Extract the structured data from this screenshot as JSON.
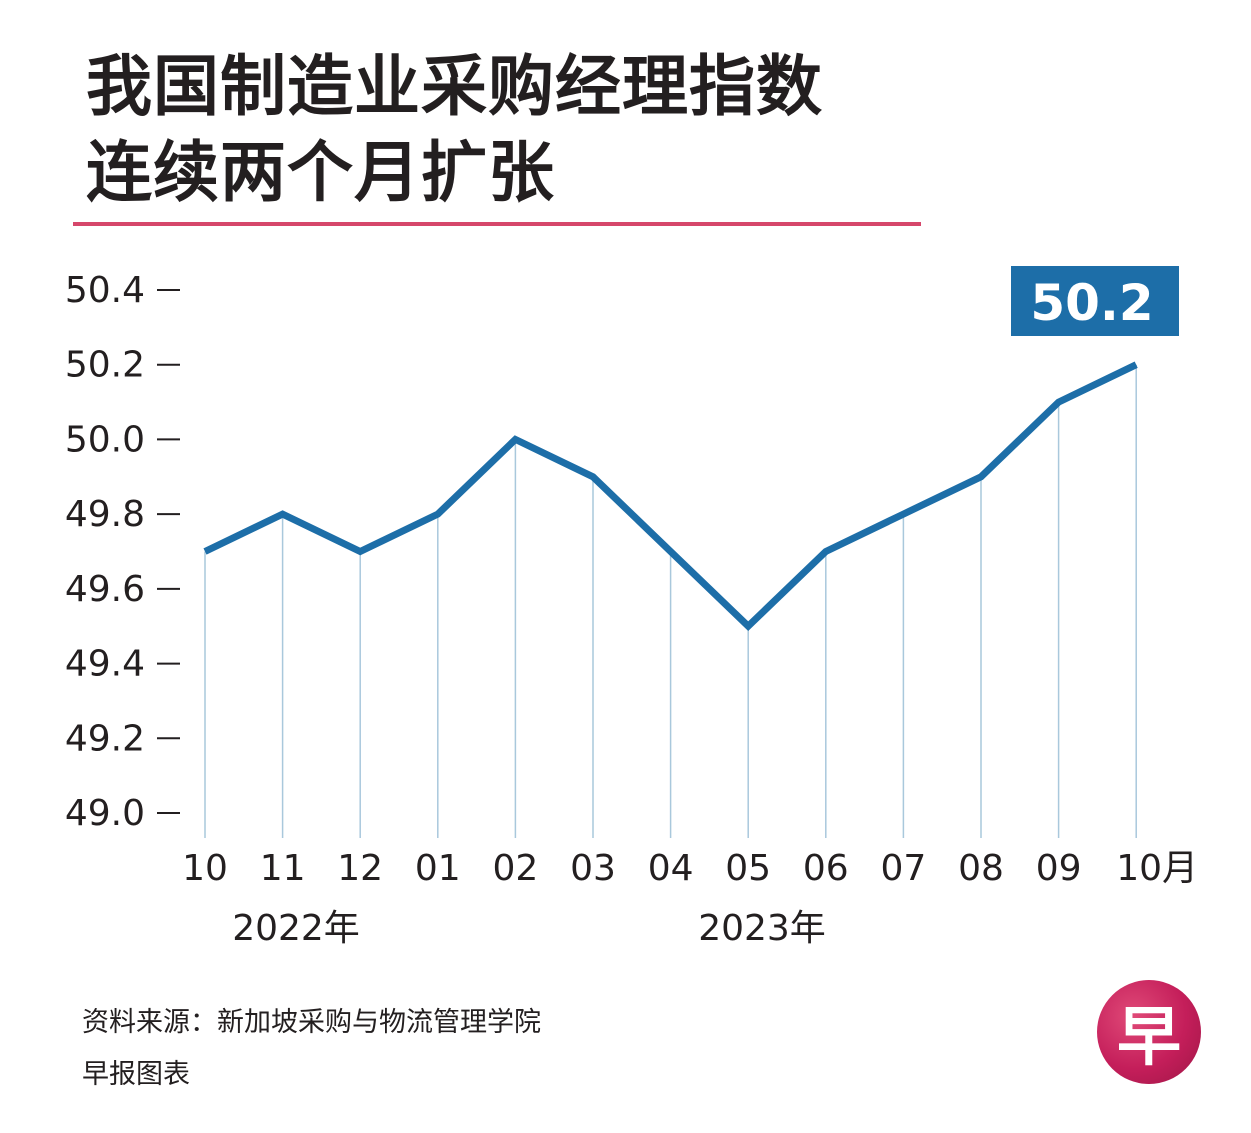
{
  "title": {
    "line1": "我国制造业采购经理指数",
    "line2": "连续两个月扩张"
  },
  "callout": {
    "value": "50.2"
  },
  "chart_data": {
    "type": "line",
    "title": "我国制造业采购经理指数连续两个月扩张",
    "categories": [
      "10",
      "11",
      "12",
      "01",
      "02",
      "03",
      "04",
      "05",
      "06",
      "07",
      "08",
      "09",
      "10月"
    ],
    "values": [
      49.7,
      49.8,
      49.7,
      49.8,
      50.0,
      49.9,
      49.7,
      49.5,
      49.7,
      49.8,
      49.9,
      50.1,
      50.2
    ],
    "ylim": [
      49.0,
      50.4
    ],
    "yticks": [
      "50.4",
      "50.2",
      "50.0",
      "49.8",
      "49.6",
      "49.4",
      "49.2",
      "49.0"
    ],
    "year_labels": [
      "2022年",
      "2023年"
    ],
    "xlabel": "",
    "ylabel": "",
    "line_color": "#1d6ea8",
    "grid_color": "#a9c8dc",
    "grid": "vertical drop lines"
  },
  "footer": {
    "source": "资料来源：新加坡采购与物流管理学院",
    "credit": "早报图表"
  },
  "logo": {
    "glyph": "早",
    "color": "#c41e5a"
  }
}
